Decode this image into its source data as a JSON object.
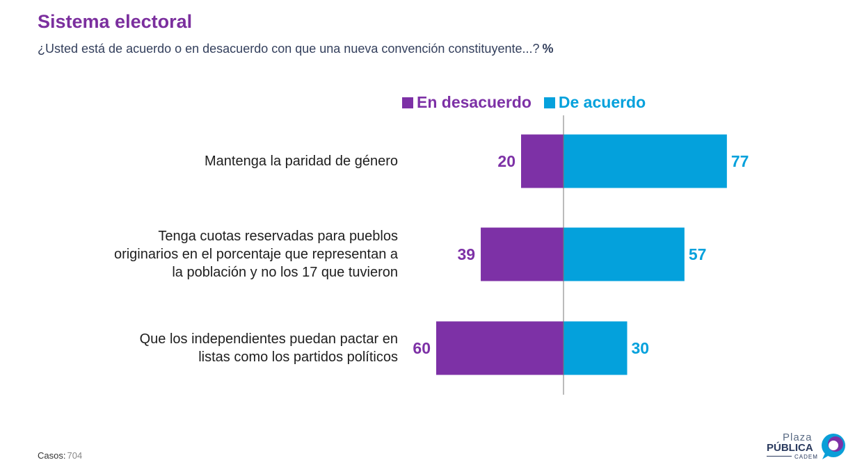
{
  "page": {
    "title": "Sistema electoral",
    "subtitle": "¿Usted está de acuerdo o en desacuerdo con que una nueva convención constituyente...?",
    "unit": "%",
    "colors": {
      "title": "#7b2f9e",
      "disagree": "#7d31a6",
      "agree": "#04a1dc",
      "axis": "#777777"
    }
  },
  "chart_data": {
    "type": "bar",
    "orientation": "horizontal-diverging",
    "categories": [
      [
        "Mantenga la paridad de género"
      ],
      [
        "Tenga cuotas reservadas para pueblos",
        "originarios en el porcentaje que representan a",
        "la población y no los 17 que tuvieron"
      ],
      [
        "Que los independientes puedan pactar en",
        "listas como los partidos políticos"
      ]
    ],
    "series": [
      {
        "name": "En desacuerdo",
        "values": [
          20,
          39,
          60
        ],
        "color": "#7d31a6"
      },
      {
        "name": "De acuerdo",
        "values": [
          77,
          57,
          30
        ],
        "color": "#04a1dc"
      }
    ],
    "legend": "top",
    "grid": false
  },
  "footer": {
    "label": "Casos",
    "value": "704"
  },
  "logo": {
    "line1": "Plaza",
    "line2": "PÚBLICA",
    "line3": "CADEM"
  }
}
